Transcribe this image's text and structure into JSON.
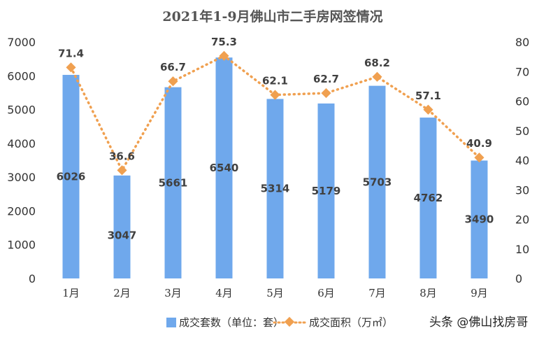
{
  "chart_data": {
    "type": "bar",
    "title": "2021年1-9月佛山市二手房网签情况",
    "categories": [
      "1月",
      "2月",
      "3月",
      "4月",
      "5月",
      "6月",
      "7月",
      "8月",
      "9月"
    ],
    "ylim": [
      0,
      7000
    ],
    "y2lim": [
      0,
      80
    ],
    "yticks": [
      "0",
      "1000",
      "2000",
      "3000",
      "4000",
      "5000",
      "6000",
      "7000"
    ],
    "y2ticks": [
      "0",
      "10",
      "20",
      "30",
      "40",
      "50",
      "60",
      "70",
      "80"
    ],
    "legend_position": "bottom",
    "series": [
      {
        "name": "成交套数（单位：套）",
        "type": "bar",
        "axis": "left",
        "color": "#6fa8ec",
        "values": [
          6026,
          3047,
          5661,
          6540,
          5314,
          5179,
          5703,
          4762,
          3490
        ]
      },
      {
        "name": "成交面积（万㎡）",
        "type": "line",
        "axis": "right",
        "color": "#f0a050",
        "line_style": "dotted",
        "values": [
          71.4,
          36.6,
          66.7,
          75.3,
          62.1,
          62.7,
          68.2,
          57.1,
          40.9
        ]
      }
    ]
  },
  "watermark": "头条 @佛山找房哥"
}
